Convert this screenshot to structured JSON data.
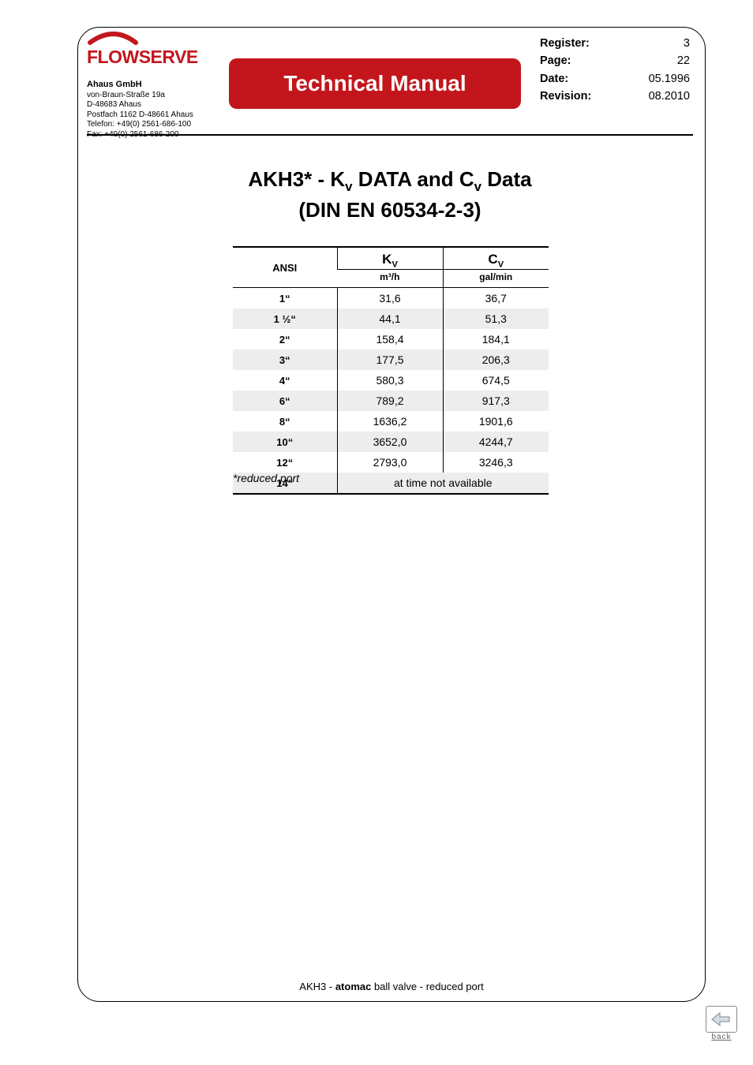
{
  "brand": {
    "name": "FLOWSERVE",
    "color": "#c3161c"
  },
  "company": {
    "name": "Ahaus GmbH",
    "lines": [
      "von-Braun-Straße 19a",
      "D-48683 Ahaus",
      "Postfach 1162 D-48661 Ahaus",
      "Telefon: +49(0) 2561-686-100",
      "Fax: +49(0) 2561-686-200"
    ]
  },
  "banner": {
    "title": "Technical Manual"
  },
  "meta": {
    "rows": [
      {
        "label": "Register:",
        "value": "3"
      },
      {
        "label": "Page:",
        "value": "22"
      },
      {
        "label": "Date:",
        "value": "05.1996"
      },
      {
        "label": "Revision:",
        "value": "08.2010"
      }
    ]
  },
  "heading": {
    "l1_pre": "AKH3* - K",
    "l1_sub1": "v",
    "l1_mid": " DATA and C",
    "l1_sub2": "v",
    "l1_post": " Data",
    "l2": "(DIN EN 60534-2-3)"
  },
  "table": {
    "head": {
      "ansi": "ANSI",
      "kv": "K",
      "kv_sub": "V",
      "kv_unit": "m³/h",
      "cv": "C",
      "cv_sub": "V",
      "cv_unit": "gal/min"
    },
    "rows": [
      {
        "ansi": "1“",
        "kv": "31,6",
        "cv": "36,7",
        "shade": false
      },
      {
        "ansi": "1 ½“",
        "kv": "44,1",
        "cv": "51,3",
        "shade": true
      },
      {
        "ansi": "2“",
        "kv": "158,4",
        "cv": "184,1",
        "shade": false
      },
      {
        "ansi": "3“",
        "kv": "177,5",
        "cv": "206,3",
        "shade": true
      },
      {
        "ansi": "4“",
        "kv": "580,3",
        "cv": "674,5",
        "shade": false
      },
      {
        "ansi": "6“",
        "kv": "789,2",
        "cv": "917,3",
        "shade": true
      },
      {
        "ansi": "8“",
        "kv": "1636,2",
        "cv": "1901,6",
        "shade": false
      },
      {
        "ansi": "10“",
        "kv": "3652,0",
        "cv": "4244,7",
        "shade": true
      },
      {
        "ansi": "12“",
        "kv": "2793,0",
        "cv": "3246,3",
        "shade": false
      },
      {
        "ansi": "14“",
        "merged": "at time not available",
        "shade": true
      }
    ]
  },
  "footnote": "*reduced port",
  "footer": {
    "pre": "AKH3 - ",
    "bold": "atomac",
    "post": " ball valve - reduced port"
  },
  "back": {
    "label": "back"
  },
  "colors": {
    "brand": "#c3161c",
    "shade": "#ededed",
    "text": "#000000",
    "bg": "#ffffff"
  }
}
